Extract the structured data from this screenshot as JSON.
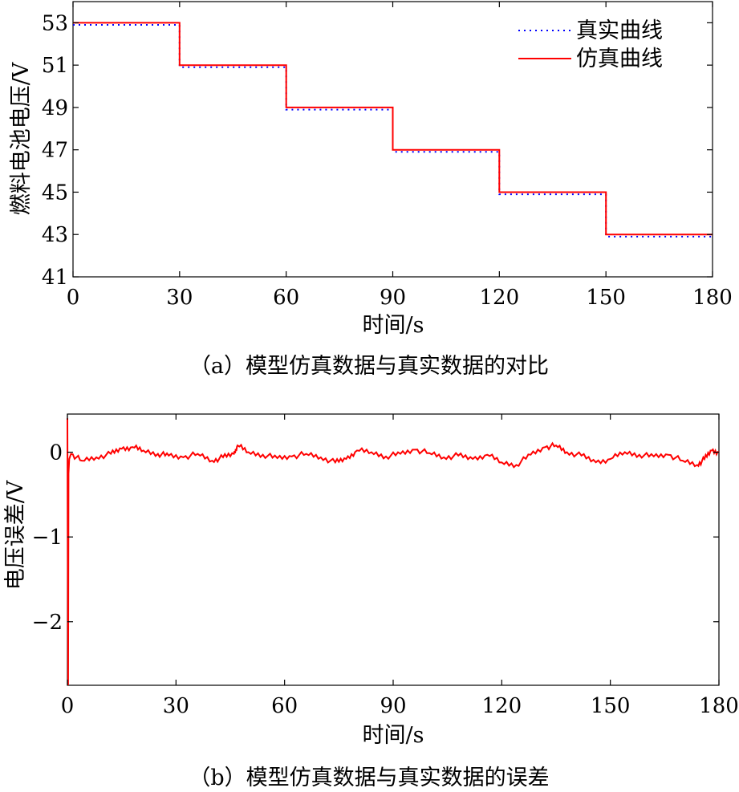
{
  "chart_data": [
    {
      "panel": "a",
      "type": "line",
      "caption": "（a）模型仿真数据与真实数据的对比",
      "xlabel": "时间/s",
      "ylabel": "燃料电池电压/V",
      "xlim": [
        0,
        180
      ],
      "ylim": [
        41,
        54
      ],
      "xticks": [
        0,
        30,
        60,
        90,
        120,
        150,
        180
      ],
      "yticks": [
        41,
        43,
        45,
        47,
        49,
        51,
        53
      ],
      "legend_position": "top-right",
      "grid": false,
      "series": [
        {
          "name": "真实曲线",
          "style": "dotted",
          "color": "#0000ff",
          "x": [
            0,
            30,
            30,
            60,
            60,
            90,
            90,
            120,
            120,
            150,
            150,
            180
          ],
          "y": [
            52.9,
            52.9,
            50.9,
            50.9,
            48.9,
            48.9,
            46.9,
            46.9,
            44.9,
            44.9,
            42.9,
            42.9
          ]
        },
        {
          "name": "仿真曲线",
          "style": "solid",
          "color": "#ff0000",
          "x": [
            0,
            30,
            30,
            60,
            60,
            90,
            90,
            120,
            120,
            150,
            150,
            180
          ],
          "y": [
            53,
            53,
            51,
            51,
            49,
            49,
            47,
            47,
            45,
            45,
            43,
            43
          ]
        }
      ]
    },
    {
      "panel": "b",
      "type": "line",
      "caption": "（b）模型仿真数据与真实数据的误差",
      "xlabel": "时间/s",
      "ylabel": "电压误差/V",
      "xlim": [
        0,
        180
      ],
      "ylim": [
        -2.75,
        0.45
      ],
      "xticks": [
        0,
        30,
        60,
        90,
        120,
        150,
        180
      ],
      "yticks": [
        0,
        -1,
        -2
      ],
      "ytick_labels": [
        "0",
        "−1",
        "−2"
      ],
      "grid": false,
      "series": [
        {
          "color": "#ff0000",
          "x": [
            0,
            0.2,
            0.3,
            0.5,
            1,
            4,
            8,
            12,
            15,
            18,
            21,
            25,
            28,
            32,
            36,
            40,
            43,
            46,
            47,
            50,
            54,
            58,
            62,
            66,
            70,
            74,
            77,
            80,
            84,
            88,
            92,
            96,
            100,
            104,
            108,
            112,
            116,
            120,
            124,
            128,
            132,
            135,
            138,
            142,
            146,
            150,
            154,
            158,
            162,
            166,
            170,
            174,
            176,
            178,
            180
          ],
          "y": [
            0.4,
            -2.75,
            -0.25,
            -0.08,
            -0.02,
            -0.1,
            -0.06,
            -0.02,
            0.04,
            0.06,
            0.02,
            -0.02,
            -0.04,
            -0.06,
            -0.02,
            -0.1,
            -0.06,
            -0.02,
            0.08,
            0.0,
            -0.03,
            -0.07,
            -0.05,
            -0.02,
            -0.06,
            -0.12,
            -0.08,
            0.02,
            0.0,
            -0.05,
            -0.02,
            0.03,
            -0.01,
            -0.06,
            -0.04,
            -0.08,
            -0.03,
            -0.12,
            -0.15,
            -0.03,
            0.06,
            0.08,
            0.0,
            -0.04,
            -0.12,
            -0.08,
            0.0,
            -0.03,
            -0.05,
            -0.03,
            -0.1,
            -0.15,
            -0.08,
            0.02,
            0.0
          ]
        }
      ]
    }
  ]
}
